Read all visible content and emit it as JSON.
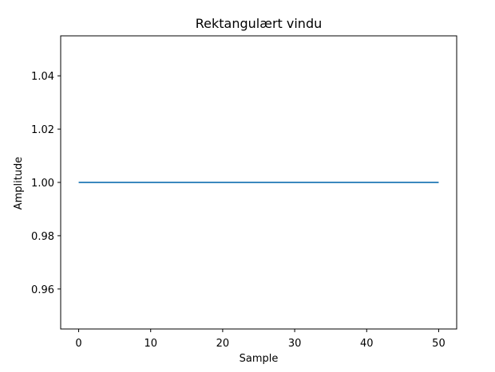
{
  "chart_data": {
    "type": "line",
    "title": "Rektangulært vindu",
    "xlabel": "Sample",
    "ylabel": "Amplitude",
    "xlim": [
      -2.5,
      52.5
    ],
    "ylim": [
      0.945,
      1.055
    ],
    "x_ticks": [
      0,
      10,
      20,
      30,
      40,
      50
    ],
    "x_tick_labels": [
      "0",
      "10",
      "20",
      "30",
      "40",
      "50"
    ],
    "y_ticks": [
      0.96,
      0.98,
      1.0,
      1.02,
      1.04
    ],
    "y_tick_labels": [
      "0.96",
      "0.98",
      "1.00",
      "1.02",
      "1.04"
    ],
    "grid": false,
    "series": [
      {
        "color": "#1f77b4",
        "x": [
          0,
          50
        ],
        "y": [
          1.0,
          1.0
        ]
      }
    ]
  }
}
